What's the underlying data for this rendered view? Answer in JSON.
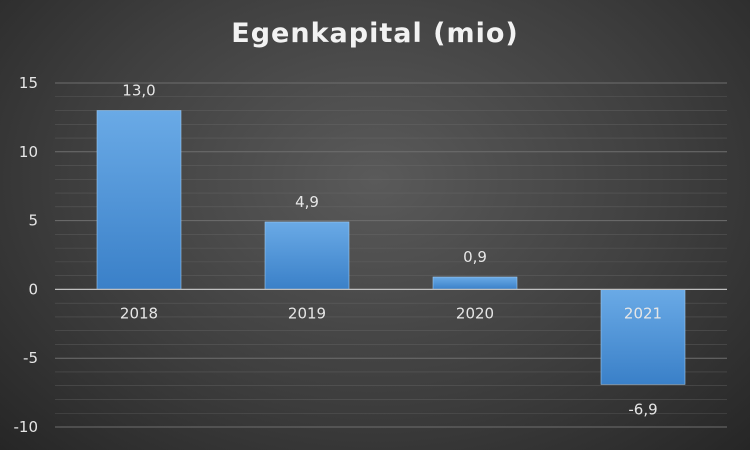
{
  "chart_data": {
    "type": "bar",
    "title": "Egenkapital (mio)",
    "categories": [
      "2018",
      "2019",
      "2020",
      "2021"
    ],
    "values": [
      13.0,
      4.9,
      0.9,
      -6.9
    ],
    "value_labels": [
      "13,0",
      "4,9",
      "0,9",
      "-6,9"
    ],
    "ylim": [
      -10,
      15
    ],
    "y_ticks": [
      15,
      10,
      5,
      0,
      -5,
      -10
    ],
    "y_tick_labels": [
      "15",
      "10",
      "5",
      "0",
      "-5",
      "-10"
    ],
    "grid": true,
    "legend": "none",
    "colors": {
      "bar_top": "#6aaae6",
      "bar_bottom": "#3a80c8",
      "grid": "#6e6e6e",
      "axis": "#bfbfbf",
      "text": "#e6e6e6"
    }
  }
}
